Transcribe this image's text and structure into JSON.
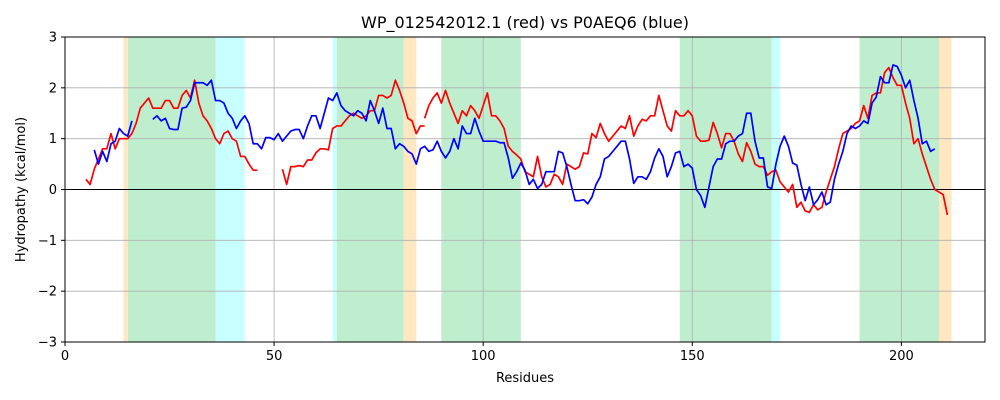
{
  "chart_data": {
    "type": "line",
    "title": "WP_012542012.1 (red) vs P0AEQ6 (blue)",
    "xlabel": "Residues",
    "ylabel": "Hydropathy (kcal/mol)",
    "xlim": [
      0,
      220
    ],
    "ylim": [
      -3,
      3
    ],
    "grid": true,
    "xticks": [
      0,
      50,
      100,
      150,
      200
    ],
    "yticks": [
      -3,
      -2,
      -1,
      0,
      1,
      2,
      3
    ],
    "zero_line": 0,
    "regions": [
      {
        "type": "overlap",
        "color": "#bfeecf",
        "x0": 15,
        "x1": 36
      },
      {
        "type": "red-only",
        "color": "#ffe7c2",
        "x0": 14,
        "x1": 15
      },
      {
        "type": "blue-only",
        "color": "#c8ffff",
        "x0": 36,
        "x1": 43
      },
      {
        "type": "blue-only",
        "color": "#c8ffff",
        "x0": 64,
        "x1": 65
      },
      {
        "type": "overlap",
        "color": "#bfeecf",
        "x0": 65,
        "x1": 81
      },
      {
        "type": "red-only",
        "color": "#ffe7c2",
        "x0": 81,
        "x1": 84
      },
      {
        "type": "overlap",
        "color": "#bfeecf",
        "x0": 90,
        "x1": 109
      },
      {
        "type": "overlap",
        "color": "#bfeecf",
        "x0": 147,
        "x1": 169
      },
      {
        "type": "blue-only",
        "color": "#c8ffff",
        "x0": 169,
        "x1": 171
      },
      {
        "type": "overlap",
        "color": "#bfeecf",
        "x0": 190,
        "x1": 209
      },
      {
        "type": "red-only",
        "color": "#ffe7c2",
        "x0": 209,
        "x1": 212
      }
    ],
    "series": [
      {
        "name": "WP_012542012.1",
        "color": "#ff0000",
        "segments": [
          {
            "x0": 5,
            "values": [
              0.2,
              0.1,
              0.4,
              0.6,
              0.8,
              0.8,
              1.1,
              0.8,
              1.0,
              1.0,
              1.0,
              1.1,
              1.3,
              1.6,
              1.7,
              1.8,
              1.6,
              1.6,
              1.6,
              1.75,
              1.75,
              1.6,
              1.6,
              1.85,
              1.95,
              1.8,
              2.15,
              1.7,
              1.45,
              1.35,
              1.2,
              1.0,
              0.9,
              1.1,
              1.15,
              1.0,
              0.95,
              0.65,
              0.65,
              0.5,
              0.38,
              0.38
            ]
          },
          {
            "x0": 52,
            "values": [
              0.4,
              0.1,
              0.45,
              0.45,
              0.47,
              0.45,
              0.58,
              0.58,
              0.72,
              0.8,
              0.8,
              0.78,
              1.2,
              1.25,
              1.25,
              1.35,
              1.45,
              1.5,
              1.45,
              1.4,
              1.45,
              1.55,
              1.55,
              1.85,
              1.85,
              1.8,
              1.85,
              2.15,
              1.95,
              1.7,
              1.4,
              1.35,
              1.1,
              1.25,
              1.25
            ]
          },
          {
            "x0": 86,
            "values": [
              1.4,
              1.65,
              1.8,
              1.9,
              1.7,
              1.95,
              1.7,
              1.5,
              1.3,
              1.55,
              1.45,
              1.65,
              1.55,
              1.4,
              1.65,
              1.9,
              1.45,
              1.45,
              1.35,
              1.2,
              0.85,
              0.75,
              0.68,
              0.6,
              0.35,
              0.3,
              0.25,
              0.65,
              0.25,
              0.05,
              0.1,
              0.3,
              0.25,
              0.1,
              0.5,
              0.45,
              0.4,
              0.45,
              0.72,
              0.7,
              1.1,
              1.02,
              1.3,
              1.1,
              0.95,
              1.05,
              1.15,
              1.25,
              1.2,
              1.45,
              1.05,
              1.25,
              1.38,
              1.35,
              1.45,
              1.45,
              1.85,
              1.55,
              1.25,
              1.15,
              1.55,
              1.45,
              1.45,
              1.55,
              1.45,
              1.05,
              0.95,
              0.95,
              0.97,
              1.32,
              1.1,
              0.82,
              1.1,
              1.1,
              0.95,
              0.7,
              0.55,
              0.92,
              0.75,
              0.5,
              0.45,
              0.45,
              0.28,
              0.35,
              0.38,
              0.15,
              0.05,
              -0.05,
              0.1,
              -0.35,
              -0.25,
              -0.42,
              -0.45,
              -0.3,
              -0.4,
              -0.35,
              -0.05,
              0.2,
              0.45,
              0.8,
              1.1,
              1.15,
              1.2,
              1.3,
              1.35,
              1.65,
              1.4,
              1.85,
              1.9,
              1.9,
              2.3,
              2.4,
              2.2,
              2.05,
              2.05,
              1.7,
              1.4,
              0.9,
              1.0,
              0.7,
              0.45,
              0.2,
              0.0,
              -0.05,
              -0.1,
              -0.5
            ]
          }
        ]
      },
      {
        "name": "P0AEQ6",
        "color": "#0000ff",
        "segments": [
          {
            "x0": 7,
            "values": [
              0.78,
              0.5,
              0.75,
              0.55,
              0.9,
              0.95,
              1.2,
              1.1,
              1.05,
              1.35
            ]
          },
          {
            "x0": 21,
            "values": [
              1.38,
              1.45,
              1.35,
              1.4,
              1.2,
              1.18,
              1.18,
              1.6,
              1.62,
              1.75,
              2.1,
              2.1,
              2.1,
              2.05,
              2.15,
              1.75,
              1.75,
              1.7,
              1.5,
              1.4,
              1.2,
              1.35,
              1.45,
              1.3,
              0.9,
              0.9,
              0.8,
              1.02,
              1.02,
              0.98,
              1.1,
              0.95,
              1.05,
              1.15,
              1.18,
              1.18,
              1.0,
              1.25,
              1.45,
              1.45,
              1.2,
              1.5,
              1.8,
              1.75,
              1.9,
              1.65,
              1.55,
              1.5,
              1.45,
              1.55,
              1.5,
              1.35,
              1.75,
              1.55,
              1.3,
              1.6,
              1.2,
              1.2,
              0.8,
              0.9,
              0.85,
              0.75,
              0.7,
              0.5,
              0.8,
              0.85,
              0.75,
              0.78,
              0.95,
              0.75,
              0.62,
              0.75,
              1.0,
              0.8,
              1.25,
              1.1,
              1.1,
              1.4,
              1.15,
              0.95,
              0.95,
              0.95,
              0.95,
              0.92,
              0.92,
              0.62,
              0.22,
              0.35,
              0.52,
              0.38,
              0.1,
              0.2,
              0.02,
              0.1,
              0.35,
              0.35,
              0.35,
              0.75,
              0.72,
              0.45,
              0.1,
              -0.22,
              -0.22,
              -0.2,
              -0.28,
              -0.15,
              0.1,
              0.25,
              0.6,
              0.65,
              0.75,
              0.85,
              0.95,
              0.95,
              0.6,
              0.12,
              0.25,
              0.25,
              0.2,
              0.35,
              0.62,
              0.8,
              0.65,
              0.25,
              0.45,
              0.72,
              0.75,
              0.45,
              0.5,
              0.42,
              0.0,
              -0.12,
              -0.35,
              0.05,
              0.45,
              0.6,
              0.6,
              0.9,
              0.95,
              0.95,
              1.05,
              1.1,
              1.5,
              1.5,
              0.95,
              0.62,
              0.62,
              0.05,
              0.02,
              0.5,
              0.85,
              1.05,
              0.85,
              0.52,
              0.48,
              0.1,
              -0.22,
              0.05,
              -0.3,
              -0.2,
              -0.05,
              -0.3,
              -0.25,
              0.2,
              0.5,
              0.75,
              1.1,
              1.25,
              1.2,
              1.25,
              1.35,
              1.3,
              1.7,
              1.82,
              2.22,
              2.1,
              2.1,
              2.45,
              2.42,
              2.25,
              2.0,
              2.15,
              1.75,
              1.4,
              0.9,
              0.95,
              0.75,
              0.8
            ]
          }
        ]
      }
    ]
  }
}
